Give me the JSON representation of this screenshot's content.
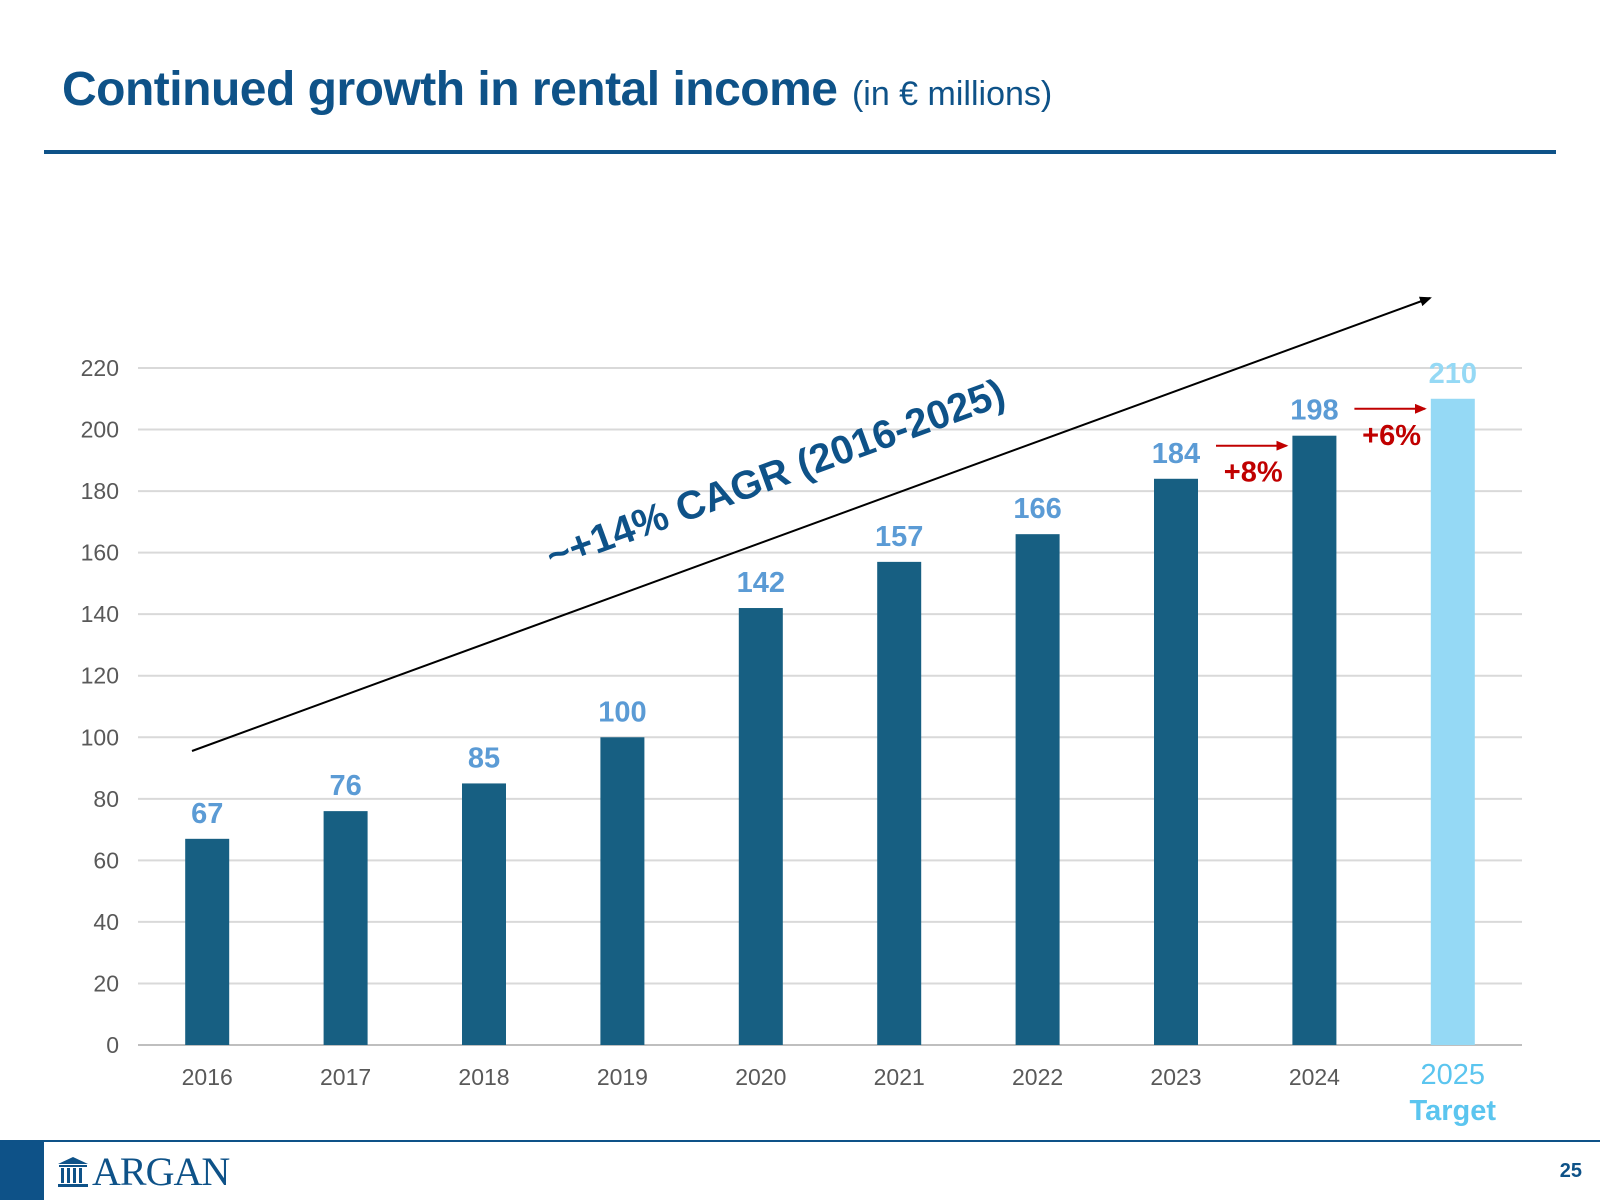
{
  "page": {
    "title": "Continued growth in rental income",
    "title_unit": "(in € millions)",
    "logo_text": "ARGAN",
    "page_number": "25"
  },
  "colors": {
    "brand": "#0e5288",
    "bar": "#175f82",
    "bar_target": "#95d9f5",
    "value_label": "#5b9bd5",
    "growth": "#c00000",
    "axis_text": "#595959",
    "grid": "#d9d9d9"
  },
  "chart_data": {
    "type": "bar",
    "categories": [
      "2016",
      "2017",
      "2018",
      "2019",
      "2020",
      "2021",
      "2022",
      "2023",
      "2024",
      "2025"
    ],
    "target_label": "Target",
    "target_index": 9,
    "values": [
      67,
      76,
      85,
      100,
      142,
      157,
      166,
      184,
      198,
      210
    ],
    "value_labels": [
      "67",
      "76",
      "85",
      "100",
      "142",
      "157",
      "166",
      "184",
      "198",
      "210"
    ],
    "ylim": [
      0,
      220
    ],
    "yticks": [
      0,
      20,
      40,
      60,
      80,
      100,
      120,
      140,
      160,
      180,
      200,
      220
    ],
    "grid": true,
    "trend_annotation": "~+14% CAGR (2016-2025)",
    "growth_annotations": [
      {
        "label": "+8%",
        "from_index": 7,
        "to_index": 8
      },
      {
        "label": "+6%",
        "from_index": 8,
        "to_index": 9
      }
    ]
  }
}
